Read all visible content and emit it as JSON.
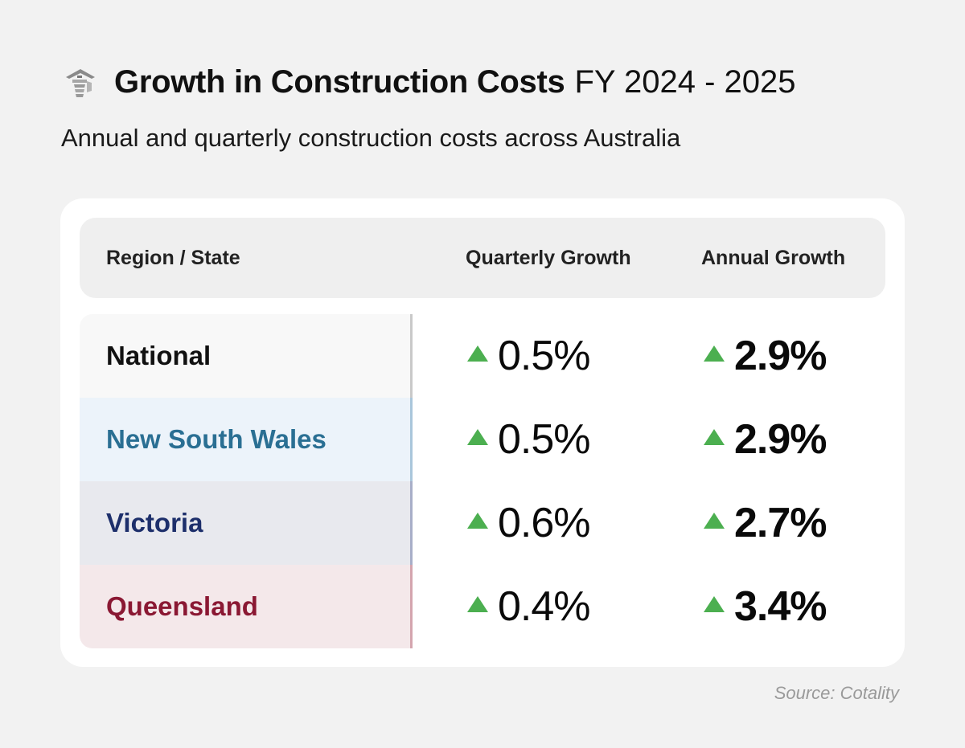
{
  "header": {
    "icon": "construction-building-icon",
    "title_bold": "Growth in Construction Costs",
    "title_light": "FY 2024 - 2025",
    "subtitle": "Annual and quarterly construction costs across Australia"
  },
  "chart_data": {
    "type": "table",
    "columns": [
      "Region / State",
      "Quarterly Growth",
      "Annual Growth"
    ],
    "rows": [
      {
        "region": "National",
        "quarterly": "0.5%",
        "annual": "2.9%",
        "quarterly_value": 0.5,
        "annual_value": 2.9,
        "text_color": "#111111",
        "bg_color": "#f8f8f8",
        "divider_color": "#c9c9c9"
      },
      {
        "region": "New South Wales",
        "quarterly": "0.5%",
        "annual": "2.9%",
        "quarterly_value": 0.5,
        "annual_value": 2.9,
        "text_color": "#2a6f93",
        "bg_color": "#ecf3fa",
        "divider_color": "#a9c6db"
      },
      {
        "region": "Victoria",
        "quarterly": "0.6%",
        "annual": "2.7%",
        "quarterly_value": 0.6,
        "annual_value": 2.7,
        "text_color": "#1d2f6b",
        "bg_color": "#e8e9ee",
        "divider_color": "#a8aec8"
      },
      {
        "region": "Queensland",
        "quarterly": "0.4%",
        "annual": "3.4%",
        "quarterly_value": 0.4,
        "annual_value": 3.4,
        "text_color": "#8a1833",
        "bg_color": "#f4e8ea",
        "divider_color": "#d4a5ae"
      }
    ],
    "trend_direction": "up",
    "trend_color": "#4caf50"
  },
  "footer": {
    "source": "Source: Cotality"
  }
}
